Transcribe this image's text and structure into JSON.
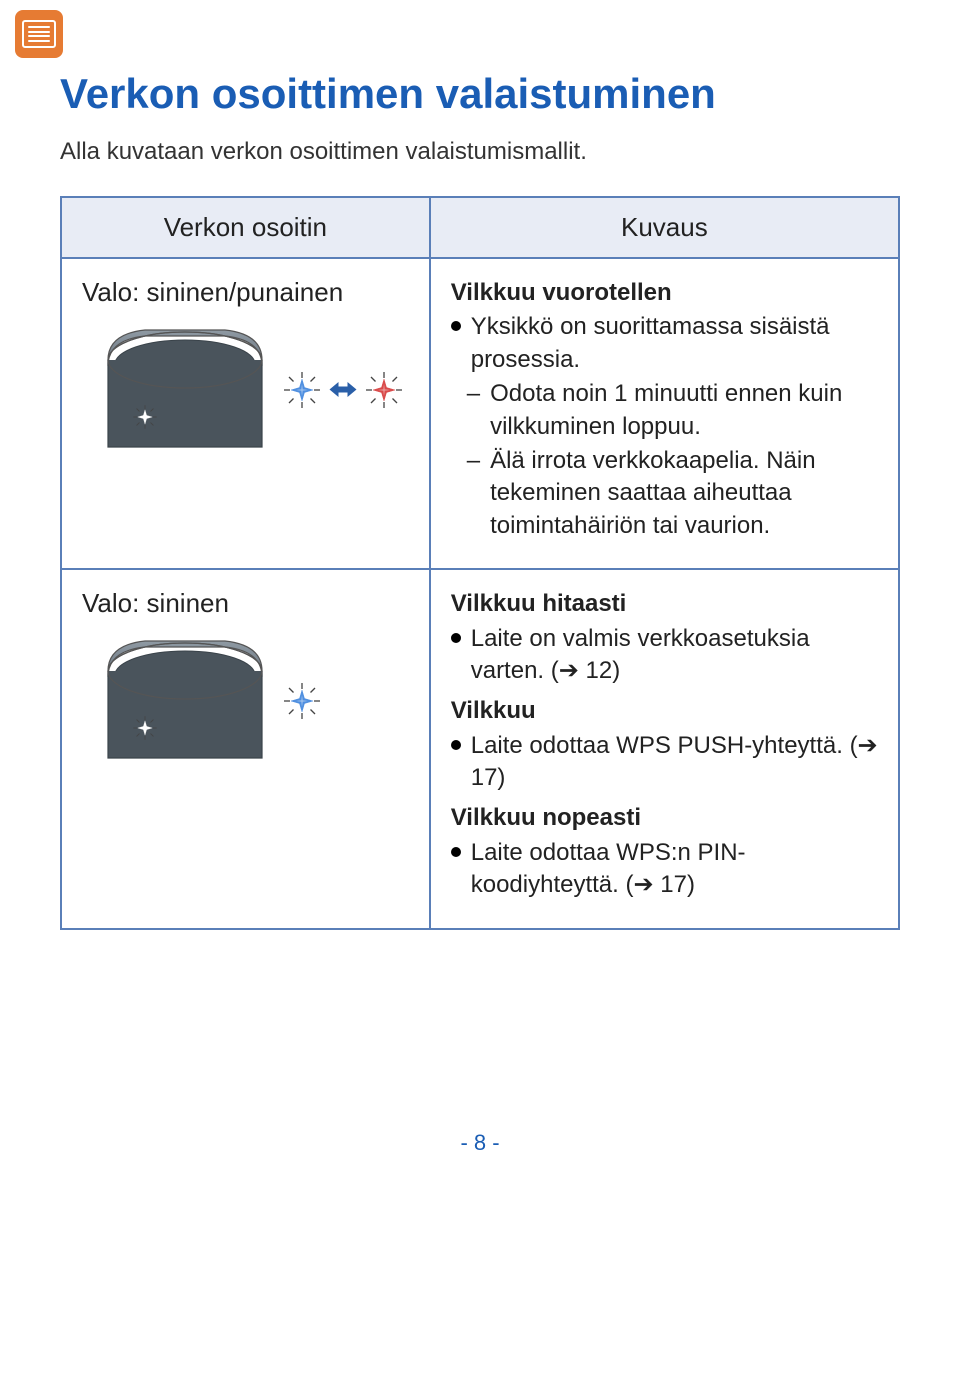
{
  "colors": {
    "heading_blue": "#1a5db4",
    "table_border": "#5a7fb8",
    "header_bg": "#e8ecf5",
    "menu_badge_bg": "#e67b33",
    "text": "#222222",
    "speaker_top_light": "#8f9aa3",
    "speaker_top_dark": "#6b7680",
    "speaker_body": "#4a545c",
    "blue_light": "#4f8fe0",
    "red_light": "#d94a4a",
    "ray_color": "#444444"
  },
  "page_title": "Verkon osoittimen valaistuminen",
  "intro_text": "Alla kuvataan verkon osoittimen valaistumismallit.",
  "table": {
    "header_indicator": "Verkon osoitin",
    "header_description": "Kuvaus",
    "rows": [
      {
        "indicator_label": "Valo: sininen/punainen",
        "illustration": "device-blue-red",
        "description": {
          "sections": [
            {
              "heading": "Vilkkuu vuorotellen",
              "bullets": [
                "Yksikkö on suorittamassa sisäistä prosessia."
              ],
              "dashes": [
                "Odota noin 1 minuutti ennen kuin vilkkuminen loppuu.",
                "Älä irrota verkkokaapelia. Näin tekeminen saattaa aiheuttaa toimintahäiriön tai vaurion."
              ]
            }
          ]
        }
      },
      {
        "indicator_label": "Valo: sininen",
        "illustration": "device-blue",
        "description": {
          "sections": [
            {
              "heading": "Vilkkuu hitaasti",
              "bullets": [
                "Laite on valmis verkkoasetuksia varten. (➔ 12)"
              ],
              "dashes": []
            },
            {
              "heading": "Vilkkuu",
              "bullets": [
                "Laite odottaa WPS PUSH-yhteyttä. (➔ 17)"
              ],
              "dashes": []
            },
            {
              "heading": "Vilkkuu nopeasti",
              "bullets": [
                "Laite odottaa WPS:n PIN-koodiyhteyttä. (➔ 17)"
              ],
              "dashes": []
            }
          ]
        }
      }
    ]
  },
  "page_number": "- 8 -"
}
